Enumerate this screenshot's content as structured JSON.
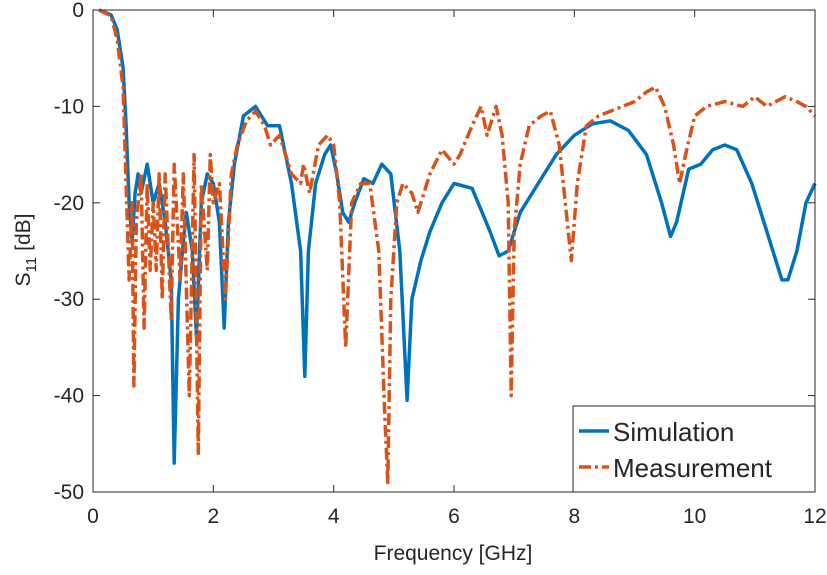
{
  "chart_data": {
    "type": "line",
    "xlabel": "Frequency [GHz]",
    "ylabel": [
      "S",
      "11",
      "[dB]"
    ],
    "xlim": [
      0,
      12
    ],
    "xticks": [
      0,
      2,
      4,
      6,
      8,
      10,
      12
    ],
    "ylim": [
      -50,
      0
    ],
    "yticks": [
      -50,
      -40,
      -30,
      -20,
      -10,
      0
    ],
    "legend": "lower right",
    "series": [
      {
        "name": "Simulation",
        "color": "#0072bd",
        "style": "solid",
        "x": [
          0.1,
          0.3,
          0.4,
          0.5,
          0.55,
          0.6,
          0.65,
          0.7,
          0.75,
          0.8,
          0.9,
          1.0,
          1.1,
          1.2,
          1.3,
          1.35,
          1.42,
          1.5,
          1.55,
          1.65,
          1.72,
          1.8,
          1.9,
          2.0,
          2.1,
          2.18,
          2.25,
          2.35,
          2.5,
          2.7,
          2.9,
          3.1,
          3.3,
          3.45,
          3.52,
          3.58,
          3.7,
          3.85,
          3.95,
          4.05,
          4.15,
          4.25,
          4.35,
          4.5,
          4.65,
          4.8,
          4.95,
          5.1,
          5.22,
          5.3,
          5.45,
          5.6,
          5.8,
          6.0,
          6.3,
          6.6,
          6.75,
          6.9,
          7.1,
          7.4,
          7.7,
          8.0,
          8.3,
          8.6,
          8.9,
          9.2,
          9.45,
          9.6,
          9.7,
          9.9,
          10.1,
          10.3,
          10.5,
          10.7,
          10.95,
          11.2,
          11.45,
          11.55,
          11.7,
          11.85,
          12
        ],
        "values": [
          0,
          -0.5,
          -2,
          -6,
          -12,
          -20,
          -24,
          -19,
          -17,
          -19,
          -16,
          -20,
          -18,
          -22,
          -28,
          -47,
          -30,
          -24,
          -21,
          -25,
          -34,
          -20,
          -17,
          -18,
          -22,
          -33,
          -22,
          -16,
          -11,
          -10,
          -12,
          -12,
          -18,
          -25,
          -38,
          -25,
          -18,
          -15,
          -14,
          -17,
          -21,
          -22,
          -20,
          -17.5,
          -18,
          -16,
          -17,
          -25,
          -40.5,
          -30,
          -26,
          -23,
          -20,
          -18,
          -18.5,
          -23,
          -25.5,
          -25,
          -21,
          -18,
          -15,
          -13,
          -11.8,
          -11.5,
          -12.5,
          -15,
          -20,
          -23.5,
          -22,
          -16.5,
          -16,
          -14.5,
          -14,
          -14.5,
          -18,
          -23,
          -28,
          -28,
          -25,
          -20,
          -18
        ]
      },
      {
        "name": "Measurement",
        "color": "#d95319",
        "style": "dashdot",
        "x": [
          0.1,
          0.3,
          0.4,
          0.5,
          0.55,
          0.6,
          0.65,
          0.68,
          0.72,
          0.8,
          0.85,
          0.9,
          0.95,
          1.0,
          1.05,
          1.1,
          1.15,
          1.2,
          1.3,
          1.35,
          1.45,
          1.5,
          1.6,
          1.68,
          1.75,
          1.8,
          1.9,
          1.95,
          2.0,
          2.1,
          2.2,
          2.3,
          2.4,
          2.55,
          2.7,
          2.85,
          2.95,
          3.1,
          3.3,
          3.45,
          3.5,
          3.6,
          3.75,
          3.9,
          4.0,
          4.1,
          4.2,
          4.3,
          4.45,
          4.6,
          4.75,
          4.85,
          4.9,
          4.95,
          5.05,
          5.15,
          5.3,
          5.4,
          5.6,
          5.8,
          6.0,
          6.1,
          6.3,
          6.45,
          6.55,
          6.7,
          6.8,
          6.9,
          6.95,
          7.0,
          7.1,
          7.25,
          7.45,
          7.6,
          7.75,
          7.9,
          7.95,
          8.05,
          8.2,
          8.4,
          8.6,
          8.8,
          9.0,
          9.2,
          9.35,
          9.5,
          9.65,
          9.75,
          9.85,
          10.0,
          10.2,
          10.5,
          10.8,
          11.0,
          11.2,
          11.5,
          11.7,
          11.85,
          12
        ],
        "values": [
          0,
          -0.6,
          -3,
          -8,
          -18,
          -28,
          -20,
          -39,
          -22,
          -17,
          -33,
          -18,
          -27,
          -20,
          -27,
          -17,
          -30,
          -17,
          -32,
          -16,
          -28,
          -17,
          -40,
          -15,
          -46,
          -18,
          -27,
          -15,
          -20,
          -18,
          -30,
          -17,
          -14,
          -11.5,
          -10.5,
          -12,
          -14,
          -13,
          -17,
          -18,
          -16,
          -19,
          -14,
          -13,
          -14,
          -20,
          -35,
          -20,
          -18,
          -18,
          -25,
          -42,
          -49,
          -30,
          -20,
          -18,
          -19,
          -21,
          -17,
          -14.5,
          -16,
          -15,
          -12,
          -10,
          -13,
          -10,
          -13,
          -20,
          -40,
          -23,
          -16,
          -12,
          -11,
          -10.5,
          -14,
          -23,
          -26,
          -18,
          -12,
          -11,
          -10.5,
          -10,
          -9.5,
          -8.5,
          -8,
          -10,
          -14,
          -18,
          -15,
          -11,
          -10,
          -9.5,
          -10,
          -9,
          -10,
          -9,
          -9.5,
          -10,
          -11
        ]
      }
    ]
  }
}
